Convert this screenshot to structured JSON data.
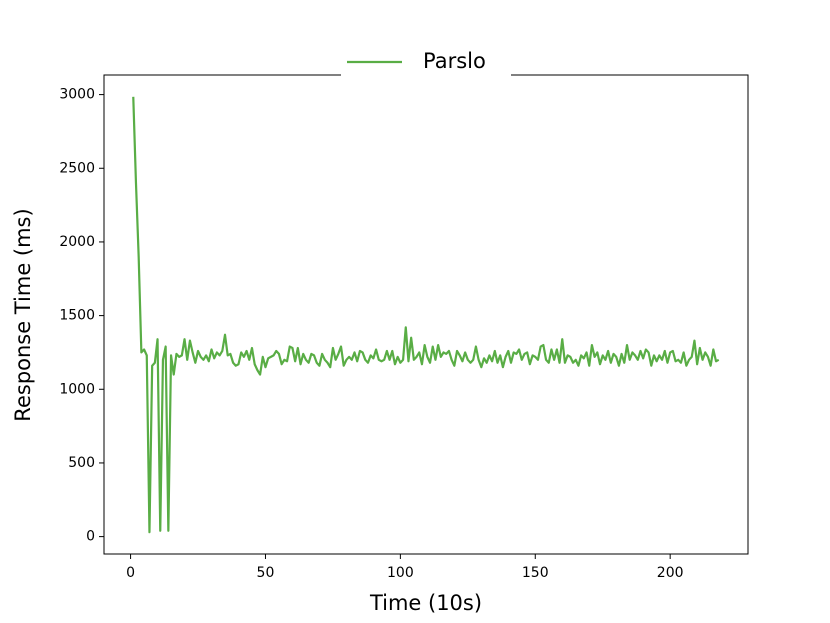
{
  "chart_data": {
    "type": "line",
    "xlabel": "Time (10s)",
    "ylabel": "Response Time (ms)",
    "legend": "upper center",
    "x": [
      1,
      2,
      3,
      4,
      5,
      6,
      7,
      8,
      9,
      10,
      11,
      12,
      13,
      14,
      15,
      16,
      17,
      18,
      19,
      20,
      21,
      22,
      23,
      24,
      25,
      26,
      27,
      28,
      29,
      30,
      31,
      32,
      33,
      34,
      35,
      36,
      37,
      38,
      39,
      40,
      41,
      42,
      43,
      44,
      45,
      46,
      47,
      48,
      49,
      50,
      51,
      52,
      53,
      54,
      55,
      56,
      57,
      58,
      59,
      60,
      61,
      62,
      63,
      64,
      65,
      66,
      67,
      68,
      69,
      70,
      71,
      72,
      73,
      74,
      75,
      76,
      77,
      78,
      79,
      80,
      81,
      82,
      83,
      84,
      85,
      86,
      87,
      88,
      89,
      90,
      91,
      92,
      93,
      94,
      95,
      96,
      97,
      98,
      99,
      100,
      101,
      102,
      103,
      104,
      105,
      106,
      107,
      108,
      109,
      110,
      111,
      112,
      113,
      114,
      115,
      116,
      117,
      118,
      119,
      120,
      121,
      122,
      123,
      124,
      125,
      126,
      127,
      128,
      129,
      130,
      131,
      132,
      133,
      134,
      135,
      136,
      137,
      138,
      139,
      140,
      141,
      142,
      143,
      144,
      145,
      146,
      147,
      148,
      149,
      150,
      151,
      152,
      153,
      154,
      155,
      156,
      157,
      158,
      159,
      160,
      161,
      162,
      163,
      164,
      165,
      166,
      167,
      168,
      169,
      170,
      171,
      172,
      173,
      174,
      175,
      176,
      177,
      178,
      179,
      180,
      181,
      182,
      183,
      184,
      185,
      186,
      187,
      188,
      189,
      190,
      191,
      192,
      193,
      194,
      195,
      196,
      197,
      198,
      199,
      200,
      201,
      202,
      203,
      204,
      205,
      206,
      207,
      208,
      209,
      210,
      211,
      212,
      213,
      214,
      215,
      216,
      217,
      218
    ],
    "series": [
      {
        "name": "Parslo",
        "color": "#59ad45",
        "values": [
          2985,
          2400,
          1900,
          1250,
          1270,
          1230,
          30,
          1160,
          1180,
          1340,
          40,
          1200,
          1290,
          40,
          1230,
          1100,
          1240,
          1220,
          1230,
          1340,
          1200,
          1330,
          1250,
          1180,
          1260,
          1220,
          1200,
          1230,
          1190,
          1270,
          1210,
          1250,
          1230,
          1260,
          1370,
          1230,
          1240,
          1180,
          1160,
          1170,
          1250,
          1220,
          1260,
          1200,
          1280,
          1170,
          1130,
          1100,
          1220,
          1150,
          1210,
          1220,
          1230,
          1260,
          1240,
          1170,
          1200,
          1190,
          1290,
          1280,
          1190,
          1280,
          1170,
          1240,
          1200,
          1180,
          1240,
          1230,
          1180,
          1160,
          1240,
          1200,
          1180,
          1150,
          1280,
          1200,
          1240,
          1290,
          1160,
          1200,
          1220,
          1200,
          1250,
          1190,
          1260,
          1250,
          1200,
          1180,
          1230,
          1210,
          1270,
          1200,
          1190,
          1200,
          1260,
          1200,
          1260,
          1170,
          1220,
          1180,
          1200,
          1420,
          1190,
          1350,
          1200,
          1220,
          1250,
          1170,
          1300,
          1220,
          1180,
          1290,
          1200,
          1300,
          1220,
          1250,
          1240,
          1260,
          1200,
          1160,
          1260,
          1230,
          1190,
          1250,
          1200,
          1180,
          1200,
          1290,
          1200,
          1150,
          1210,
          1180,
          1230,
          1190,
          1260,
          1180,
          1230,
          1150,
          1220,
          1260,
          1180,
          1250,
          1240,
          1270,
          1200,
          1240,
          1250,
          1170,
          1230,
          1220,
          1200,
          1290,
          1300,
          1200,
          1180,
          1270,
          1200,
          1270,
          1180,
          1340,
          1180,
          1230,
          1220,
          1180,
          1200,
          1160,
          1230,
          1210,
          1250,
          1160,
          1300,
          1220,
          1250,
          1170,
          1230,
          1200,
          1260,
          1180,
          1240,
          1220,
          1160,
          1240,
          1180,
          1300,
          1200,
          1250,
          1230,
          1200,
          1260,
          1210,
          1270,
          1250,
          1160,
          1230,
          1190,
          1230,
          1200,
          1260,
          1180,
          1250,
          1260,
          1190,
          1200,
          1180,
          1250,
          1160,
          1200,
          1220,
          1330,
          1170,
          1280,
          1200,
          1250,
          1220,
          1160,
          1270,
          1190,
          1200
        ]
      }
    ],
    "xlim": [
      -9.85,
      228.85
    ],
    "xticks": [
      0,
      50,
      100,
      150,
      200
    ],
    "ylim": [
      -118,
      3133
    ],
    "yticks": [
      0,
      500,
      1000,
      1500,
      2000,
      2500,
      3000
    ]
  }
}
